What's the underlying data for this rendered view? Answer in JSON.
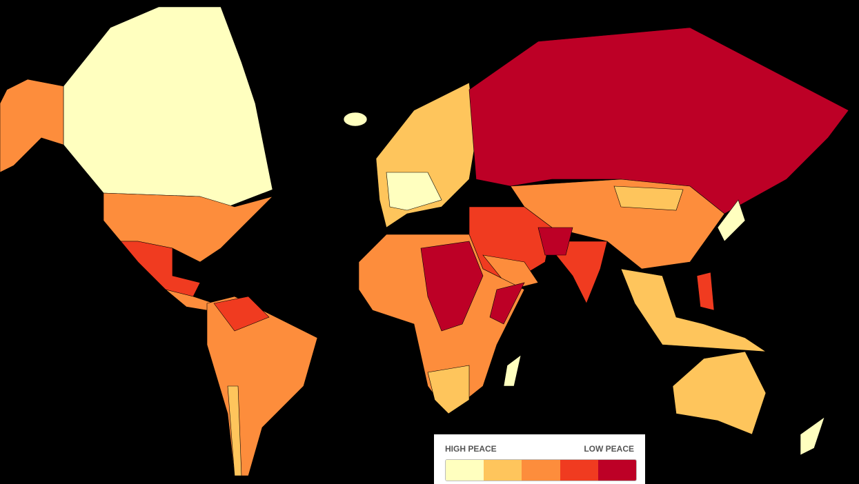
{
  "legend": {
    "left_label": "HIGH PEACE",
    "right_label": "LOW PEACE",
    "colors": [
      "#ffffbf",
      "#fec55c",
      "#fd8d3c",
      "#f03b20",
      "#bd0026"
    ]
  }
}
